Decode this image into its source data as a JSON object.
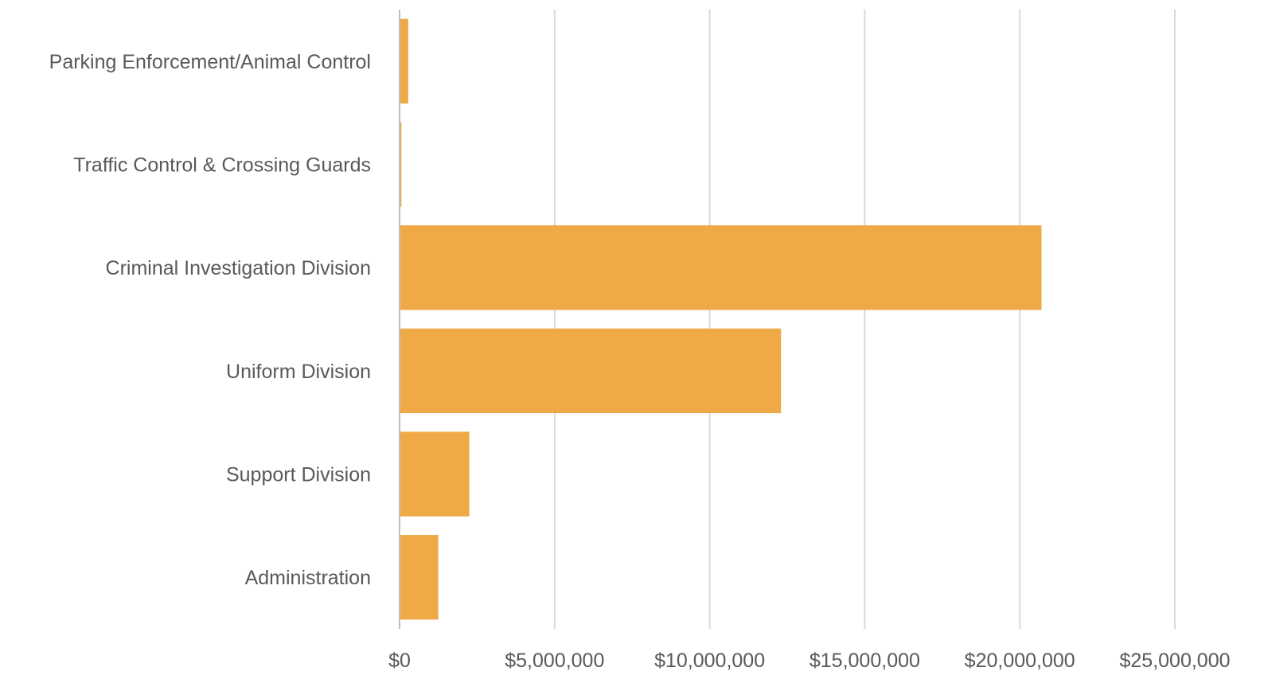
{
  "chart_data": {
    "type": "bar",
    "orientation": "horizontal",
    "title": "",
    "xlabel": "",
    "ylabel": "",
    "categories": [
      "Parking Enforcement/Animal Control",
      "Traffic Control & Crossing Guards",
      "Criminal Investigation Division",
      "Uniform Division",
      "Support Division",
      "Administration"
    ],
    "values": [
      280000,
      60000,
      20700000,
      12300000,
      2250000,
      1250000
    ],
    "xlim": [
      0,
      25000000
    ],
    "x_ticks": [
      0,
      5000000,
      10000000,
      15000000,
      20000000,
      25000000
    ],
    "x_tick_labels": [
      "$0",
      "$5,000,000",
      "$10,000,000",
      "$15,000,000",
      "$20,000,000",
      "$25,000,000"
    ],
    "grid": "vertical",
    "legend": "none",
    "colors": {
      "bar": "#EFAA47",
      "grid": "#D9D9D9",
      "axis_line": "#BFBFBF",
      "label_text": "#595959"
    }
  }
}
